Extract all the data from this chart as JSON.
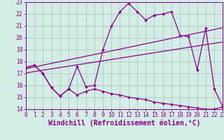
{
  "background_color": "#d4ece6",
  "grid_color": "#aaccc6",
  "line_color": "#8b008b",
  "xlim": [
    0,
    23
  ],
  "ylim": [
    14,
    23
  ],
  "yticks": [
    14,
    15,
    16,
    17,
    18,
    19,
    20,
    21,
    22,
    23
  ],
  "xticks": [
    0,
    1,
    2,
    3,
    4,
    5,
    6,
    7,
    8,
    9,
    10,
    11,
    12,
    13,
    14,
    15,
    16,
    17,
    18,
    19,
    20,
    21,
    22,
    23
  ],
  "xlabel": "Windchill (Refroidissement éolien,°C)",
  "series_main_x": [
    0,
    1,
    2,
    3,
    4,
    5,
    6,
    7,
    8,
    9,
    10,
    11,
    12,
    13,
    14,
    15,
    16,
    17,
    18,
    19,
    20,
    21,
    22,
    23
  ],
  "series_main_y": [
    17.5,
    17.7,
    17.0,
    15.8,
    15.1,
    15.7,
    17.6,
    15.9,
    16.0,
    19.0,
    21.0,
    22.2,
    22.9,
    22.2,
    21.5,
    21.9,
    22.0,
    22.2,
    20.2,
    20.1,
    17.3,
    20.8,
    15.7,
    14.2
  ],
  "series_low_x": [
    0,
    1,
    2,
    3,
    4,
    5,
    6,
    7,
    8,
    9,
    10,
    11,
    12,
    13,
    14,
    15,
    16,
    17,
    18,
    19,
    20,
    21,
    22,
    23
  ],
  "series_low_y": [
    17.5,
    17.7,
    17.0,
    15.8,
    15.1,
    15.7,
    15.2,
    15.5,
    15.7,
    15.5,
    15.3,
    15.2,
    15.0,
    14.9,
    14.8,
    14.6,
    14.5,
    14.4,
    14.3,
    14.2,
    14.1,
    14.0,
    14.0,
    14.2
  ],
  "trend1_x": [
    0,
    23
  ],
  "trend1_y": [
    17.4,
    20.85
  ],
  "trend2_x": [
    0,
    23
  ],
  "trend2_y": [
    17.05,
    19.65
  ],
  "tick_fontsize": 5.8,
  "xlabel_fontsize": 7.0
}
